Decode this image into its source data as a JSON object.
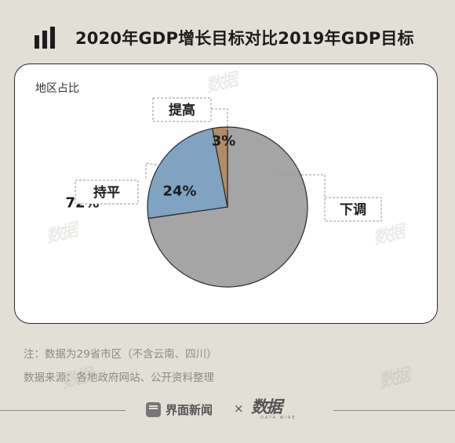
{
  "header": {
    "title": "2020年GDP增长目标对比2019年GDP目标"
  },
  "chart_data": {
    "type": "pie",
    "title": "2020年GDP增长目标对比2019年GDP目标",
    "subtitle": "地区占比",
    "slices": [
      {
        "label": "下调",
        "value": 72,
        "display": "72%",
        "color": "#a5a5a5"
      },
      {
        "label": "持平",
        "value": 24,
        "display": "24%",
        "color": "#7fa3c1"
      },
      {
        "label": "提高",
        "value": 3,
        "display": "3%",
        "color": "#b38c65"
      }
    ],
    "legend": "callout-labels"
  },
  "notes": {
    "note": "注：数据为29省市区（不含云南、四川）",
    "source": "数据来源：各地政府网站、公开资料整理"
  },
  "footer": {
    "brand1": "界面新闻",
    "separator": "×",
    "brand2": "数据",
    "brand2_sub": "DATA WIRE"
  },
  "watermark": "数据"
}
